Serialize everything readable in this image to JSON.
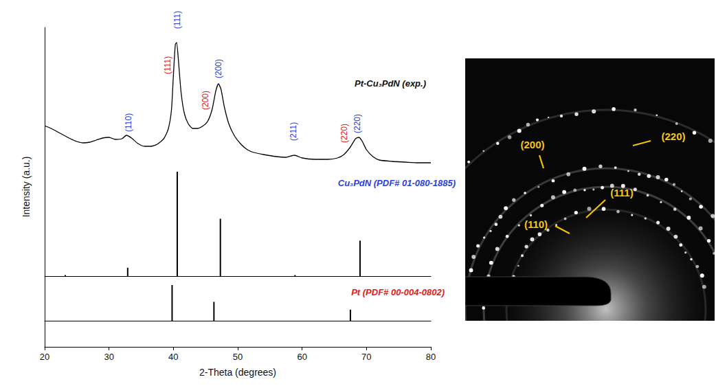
{
  "chart_data": [
    {
      "type": "line",
      "title": "Pt-Cu₃PdN (exp.)",
      "ylabel": "Intensity (a.u.)",
      "x": [
        20,
        21,
        22,
        23,
        24,
        25,
        26,
        27,
        28,
        29,
        30,
        31,
        32,
        32.7,
        33.5,
        34.5,
        35.5,
        36.5,
        37.5,
        38.5,
        39.2,
        39.7,
        40.0,
        40.3,
        40.5,
        40.8,
        41.2,
        41.7,
        42.3,
        43.0,
        43.7,
        44.5,
        45.3,
        46.0,
        46.6,
        47.0,
        47.4,
        47.9,
        48.6,
        49.5,
        50.5,
        51.5,
        52.5,
        54,
        56,
        57.5,
        58.8,
        60,
        62,
        64,
        65.5,
        66.5,
        67.5,
        68.3,
        68.8,
        69.3,
        70,
        71,
        72,
        74,
        76,
        78,
        80
      ],
      "values": [
        67,
        63,
        58,
        53,
        48,
        44,
        42,
        43,
        46,
        49,
        50,
        47,
        48,
        53,
        49,
        41,
        37,
        37,
        40,
        48,
        62,
        90,
        140,
        185,
        188,
        160,
        115,
        85,
        70,
        63,
        63,
        66,
        73,
        90,
        118,
        128,
        120,
        95,
        70,
        52,
        40,
        32,
        28,
        25,
        22,
        21,
        24,
        20,
        18,
        18,
        20,
        25,
        36,
        48,
        50,
        45,
        32,
        22,
        17,
        15,
        14,
        13,
        13
      ],
      "color": "#000000",
      "xlim": [
        20,
        80
      ],
      "ylim": [
        0,
        210
      ],
      "tick_labels": false,
      "annotations": [
        {
          "text": "(110)",
          "x": 33.0,
          "y": 58,
          "color": "#2a3fd9"
        },
        {
          "text": "(111)",
          "x": 39.1,
          "y": 142,
          "color": "#e0201b"
        },
        {
          "text": "(111)",
          "x": 40.6,
          "y": 208,
          "color": "#2a3fd9"
        },
        {
          "text": "(200)",
          "x": 45.0,
          "y": 90,
          "color": "#e0201b"
        },
        {
          "text": "(200)",
          "x": 47.0,
          "y": 136,
          "color": "#2a3fd9"
        },
        {
          "text": "(211)",
          "x": 58.6,
          "y": 45,
          "color": "#2a3fd9"
        },
        {
          "text": "(220)",
          "x": 66.6,
          "y": 42,
          "color": "#e0201b"
        },
        {
          "text": "(220)",
          "x": 68.6,
          "y": 56,
          "color": "#2a3fd9"
        }
      ]
    },
    {
      "type": "bar",
      "title": "Cu₃PdN (PDF# 01-080-1885)",
      "x": [
        23.2,
        32.9,
        40.6,
        47.3,
        58.9,
        69.0
      ],
      "values": [
        1,
        8,
        100,
        55,
        1,
        34
      ],
      "color": "#000000",
      "xlim": [
        20,
        80
      ],
      "ylim": [
        0,
        100
      ],
      "tick_labels": false
    },
    {
      "type": "bar",
      "title": "Pt (PDF# 00-004-0802)",
      "x": [
        39.8,
        46.3,
        67.5
      ],
      "values": [
        100,
        53,
        31
      ],
      "color": "#000000",
      "xlim": [
        20,
        80
      ],
      "ylim": [
        0,
        125
      ],
      "xticks": [
        20,
        30,
        40,
        50,
        60,
        70,
        80
      ],
      "xlabel": "2-Theta (degrees)",
      "tick_labels": "x"
    }
  ],
  "diffraction_pattern": {
    "labels": [
      "(200)",
      "(220)",
      "(111)",
      "(110)"
    ]
  }
}
